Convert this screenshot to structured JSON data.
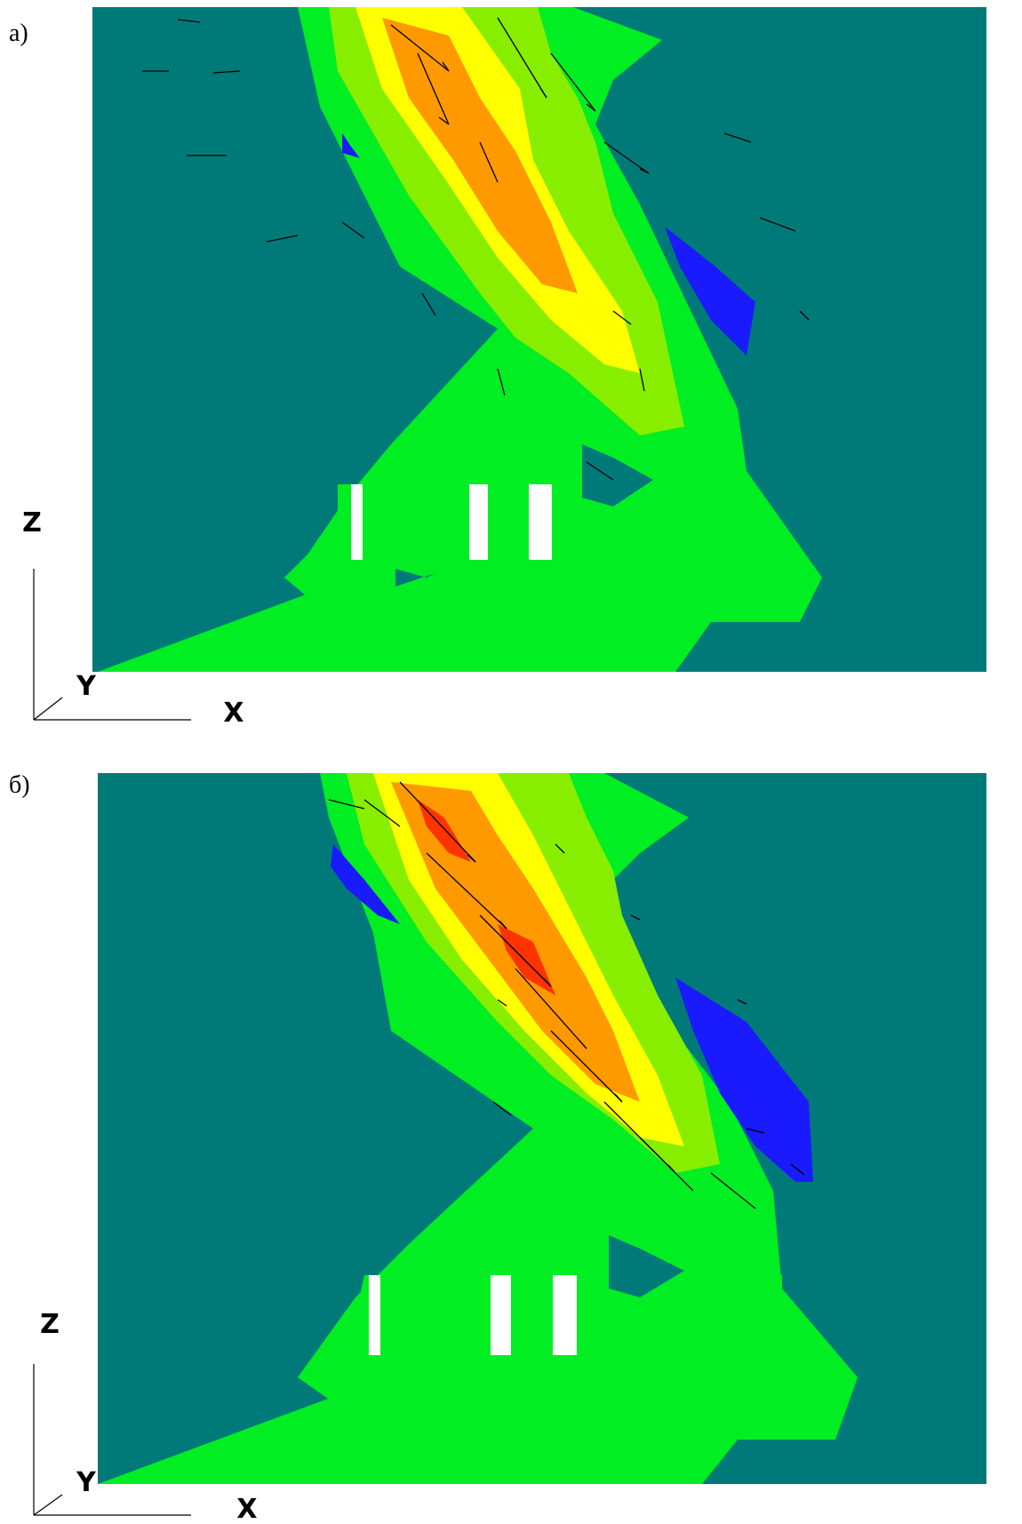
{
  "panels": [
    {
      "id": "a",
      "label": "a)",
      "axes": {
        "vertical": "Z",
        "depth": "Y",
        "horizontal": "X"
      }
    },
    {
      "id": "b",
      "label": "б)",
      "axes": {
        "vertical": "Z",
        "depth": "Y",
        "horizontal": "X"
      }
    }
  ],
  "colors": {
    "background_field": "#007a78",
    "low_level": "#1a1aff",
    "level_1": "#00ee22",
    "level_2": "#88ee00",
    "level_3": "#ffff00",
    "level_4": "#ff9900",
    "level_5": "#ff3300",
    "obstacle": "#ffffff",
    "vector": "#000000"
  }
}
